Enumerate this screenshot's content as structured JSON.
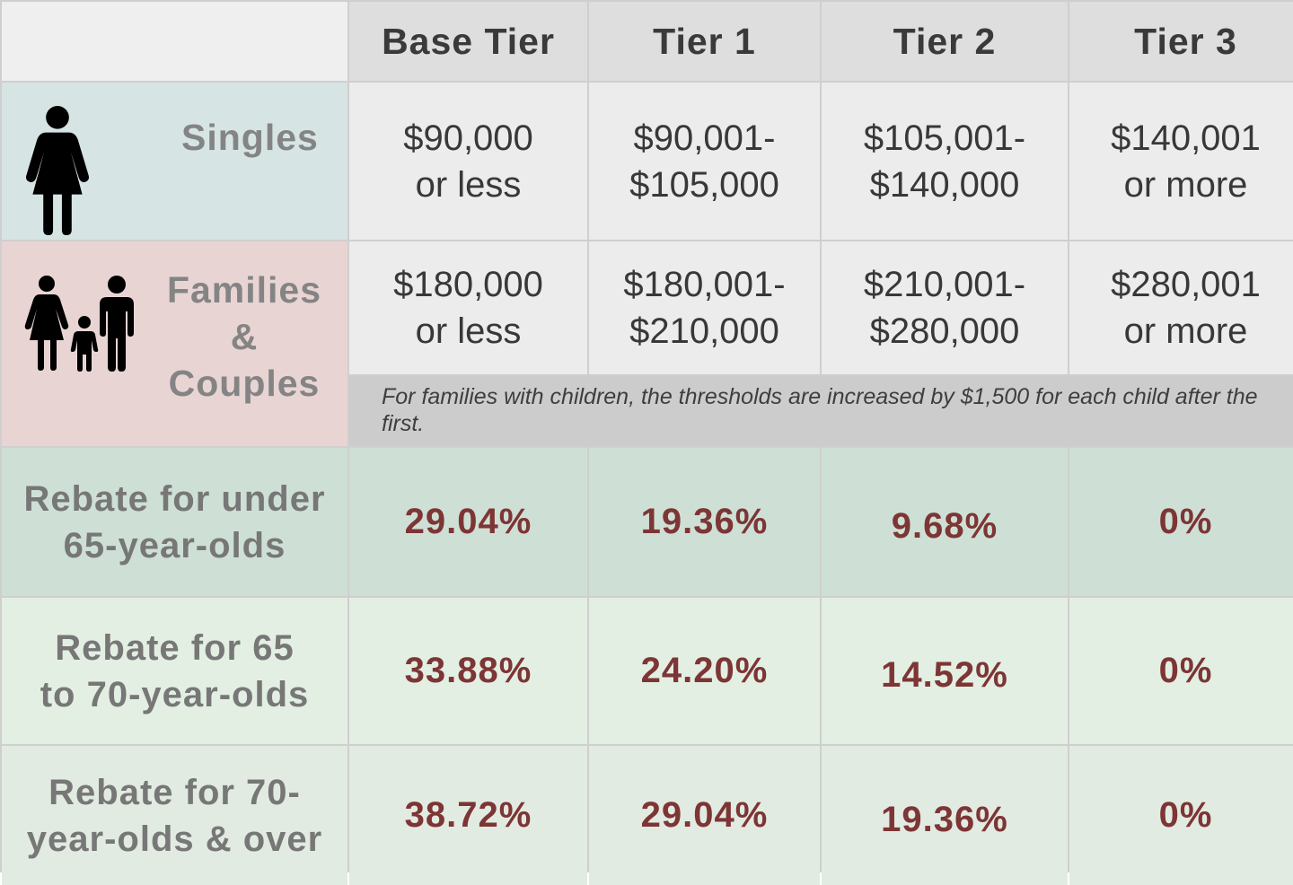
{
  "header": {
    "corner": "",
    "columns": [
      "Base Tier",
      "Tier 1",
      "Tier 2",
      "Tier 3"
    ]
  },
  "singles": {
    "label": "Singles",
    "icon": "woman-icon",
    "thresholds": [
      [
        "$90,000",
        "or less"
      ],
      [
        "$90,001-",
        "$105,000"
      ],
      [
        "$105,001-",
        "$140,000"
      ],
      [
        "$140,001",
        "or more"
      ]
    ]
  },
  "families": {
    "label_lines": [
      "Families",
      "&",
      "Couples"
    ],
    "icon": "family-icon",
    "thresholds": [
      [
        "$180,000",
        "or less"
      ],
      [
        "$180,001-",
        "$210,000"
      ],
      [
        "$210,001-",
        "$280,000"
      ],
      [
        "$280,001",
        "or more"
      ]
    ],
    "note": "For families with children, the thresholds are increased by $1,500 for each child after the first."
  },
  "rebates": [
    {
      "label_lines": [
        "Rebate for under",
        "65-year-olds"
      ],
      "values": [
        "29.04%",
        "19.36%",
        "9.68%",
        "0%"
      ]
    },
    {
      "label_lines": [
        "Rebate for 65",
        "to 70-year-olds"
      ],
      "values": [
        "33.88%",
        "24.20%",
        "14.52%",
        "0%"
      ]
    },
    {
      "label_lines": [
        "Rebate for 70-",
        "year-olds & over"
      ],
      "values": [
        "38.72%",
        "29.04%",
        "19.36%",
        "0%"
      ]
    }
  ],
  "colors": {
    "header_bg": "#dedede",
    "singles_bg": "#d6e5e4",
    "families_bg": "#e9d4d4",
    "rebate_row1_bg": "#cee0d5",
    "rebate_row2_bg": "#e3efe3",
    "rebate_row3_bg": "#e2ebe2",
    "percent_text": "#7d3535"
  }
}
